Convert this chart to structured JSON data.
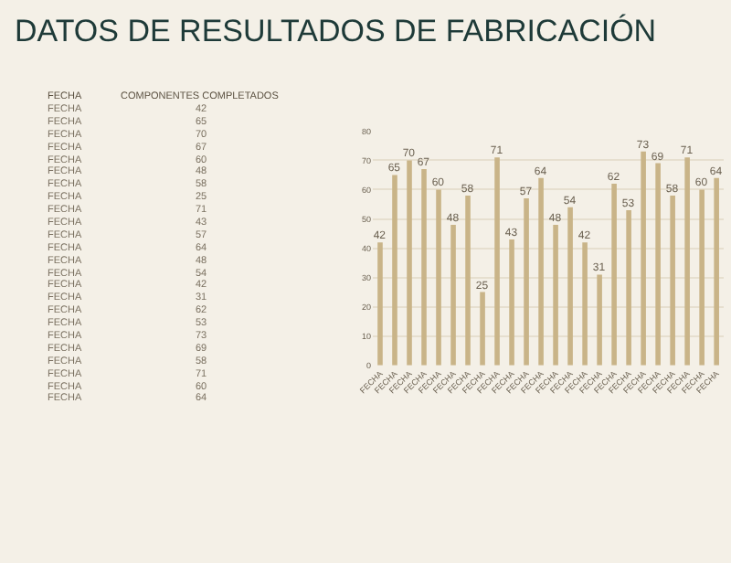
{
  "chart_data": [
    {
      "type": "other",
      "annotations": [
        "FECHA",
        "COMPONENTES COMPLETADOS",
        "FECHA",
        "42",
        "FECHA",
        "65",
        "FECHA",
        "70",
        "FECHA",
        "67",
        "FECHA",
        "60",
        "FECHA",
        "48",
        "FECHA",
        "58",
        "FECHA",
        "25",
        "FECHA",
        "71",
        "FECHA",
        "43",
        "FECHA",
        "57",
        "FECHA",
        "64",
        "FECHA",
        "48",
        "FECHA",
        "54",
        "FECHA",
        "42",
        "FECHA",
        "31",
        "FECHA",
        "62",
        "FECHA",
        "53",
        "FECHA",
        "73",
        "FECHA",
        "69",
        "FECHA",
        "58",
        "FECHA",
        "71",
        "FECHA",
        "60",
        "FECHA",
        "64"
      ]
    },
    {
      "type": "bar",
      "title": "DATOS DE RESULTADOS DE FABRICACIÓN",
      "categories": [
        "FECHA",
        "FECHA",
        "FECHA",
        "FECHA",
        "FECHA",
        "FECHA",
        "FECHA",
        "FECHA",
        "FECHA",
        "FECHA",
        "FECHA",
        "FECHA",
        "FECHA",
        "FECHA",
        "FECHA",
        "FECHA",
        "FECHA",
        "FECHA",
        "FECHA",
        "FECHA",
        "FECHA",
        "FECHA",
        "FECHA",
        "FECHA"
      ],
      "values": [
        42,
        65,
        70,
        67,
        60,
        48,
        58,
        25,
        71,
        43,
        57,
        64,
        48,
        54,
        42,
        31,
        62,
        53,
        73,
        69,
        58,
        71,
        60,
        64
      ],
      "color": "#c9b488",
      "ylim": [
        0,
        80
      ],
      "yticks": [
        0,
        10,
        20,
        30,
        40,
        50,
        60,
        70,
        80
      ],
      "grid": "y",
      "data_labels": true
    }
  ]
}
